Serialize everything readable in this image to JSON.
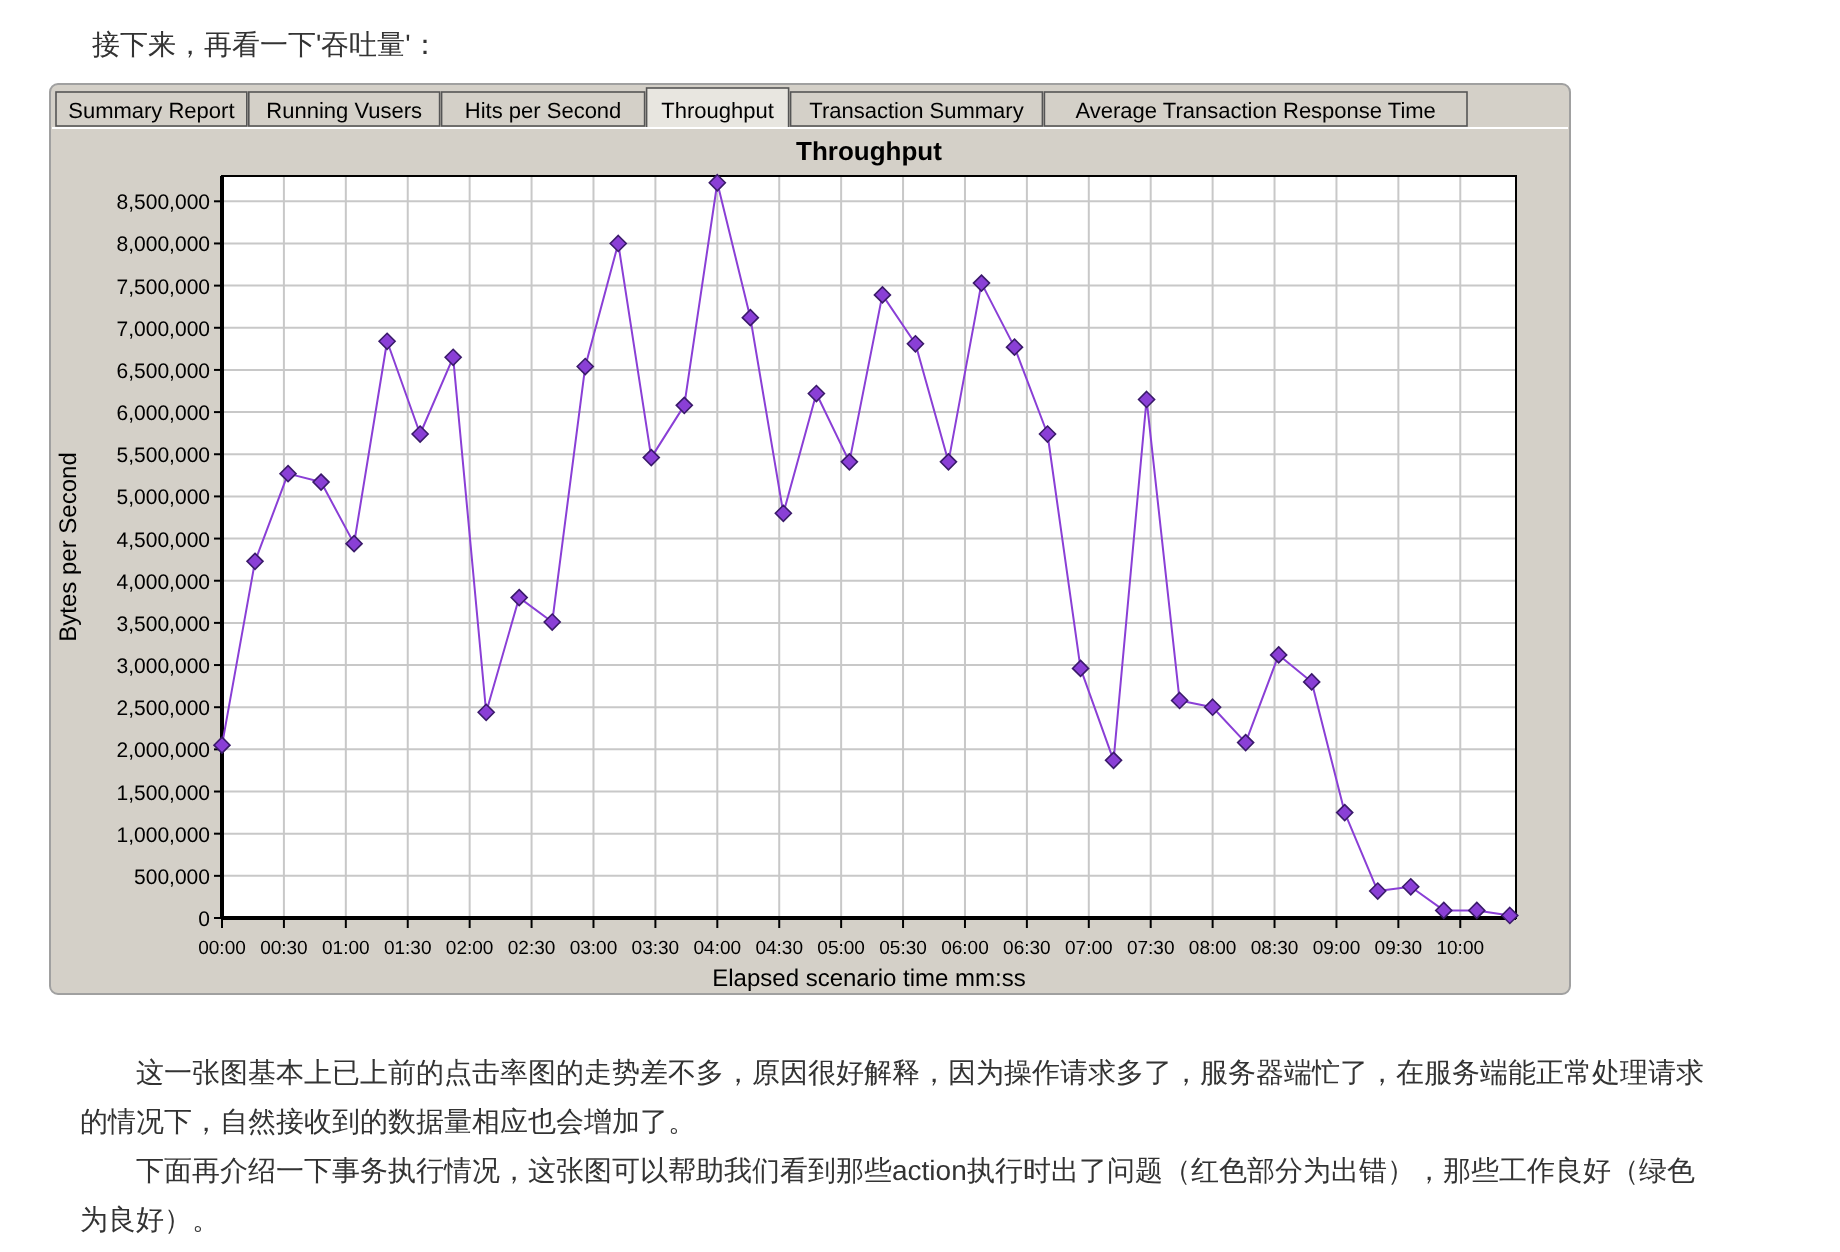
{
  "chart_data": {
    "type": "line",
    "title": "Throughput",
    "xlabel": "Elapsed scenario time mm:ss",
    "ylabel": "Bytes per Second",
    "annotations": [
      "接下来，再看一下'吞吐量'：",
      "Summary Report",
      "Running Vusers",
      "Hits per Second",
      "Throughput",
      "Transaction Summary",
      "Average Transaction Response Time",
      "这一张图基本上已上前的点击率图的走势差不多，原因很好解释，因为操作请求多了，服务器端忙了，在服务端能正常处理请求的情况下，自然接收到的数据量相应也会增加了。",
      "下面再介绍一下事务执行情况，这张图可以帮助我们看到那些action执行时出了问题（红色部分为出错），那些工作良好（绿色为良好）。"
    ],
    "x": [
      0,
      16,
      32,
      48,
      64,
      80,
      96,
      112,
      128,
      144,
      160,
      176,
      192,
      208,
      224,
      240,
      256,
      272,
      288,
      304,
      320,
      336,
      352,
      368,
      384,
      400,
      416,
      432,
      448,
      464,
      480,
      496,
      512,
      528,
      544,
      560,
      576,
      592,
      608,
      624
    ],
    "series": [
      {
        "color": "#8a3fd6",
        "values": [
          2050000,
          4230000,
          5270000,
          5170000,
          4440000,
          6840000,
          5740000,
          6650000,
          2440000,
          3800000,
          3510000,
          6540000,
          8000000,
          5460000,
          6080000,
          8720000,
          7120000,
          4800000,
          6220000,
          5410000,
          7390000,
          6810000,
          5410000,
          7530000,
          6770000,
          5740000,
          2960000,
          1870000,
          6150000,
          2580000,
          2500000,
          2080000,
          3120000,
          2800000,
          1250000,
          320000,
          370000,
          90000,
          90000,
          30000
        ]
      }
    ],
    "xlim": [
      0,
      627
    ],
    "xticks": [
      {
        "value": 0,
        "label": "00:00"
      },
      {
        "value": 30,
        "label": "00:30"
      },
      {
        "value": 60,
        "label": "01:00"
      },
      {
        "value": 90,
        "label": "01:30"
      },
      {
        "value": 120,
        "label": "02:00"
      },
      {
        "value": 150,
        "label": "02:30"
      },
      {
        "value": 180,
        "label": "03:00"
      },
      {
        "value": 210,
        "label": "03:30"
      },
      {
        "value": 240,
        "label": "04:00"
      },
      {
        "value": 270,
        "label": "04:30"
      },
      {
        "value": 300,
        "label": "05:00"
      },
      {
        "value": 330,
        "label": "05:30"
      },
      {
        "value": 360,
        "label": "06:00"
      },
      {
        "value": 390,
        "label": "06:30"
      },
      {
        "value": 420,
        "label": "07:00"
      },
      {
        "value": 450,
        "label": "07:30"
      },
      {
        "value": 480,
        "label": "08:00"
      },
      {
        "value": 510,
        "label": "08:30"
      },
      {
        "value": 540,
        "label": "09:00"
      },
      {
        "value": 570,
        "label": "09:30"
      },
      {
        "value": 600,
        "label": "10:00"
      }
    ],
    "ylim": [
      0,
      8800000
    ],
    "yticks": [
      {
        "value": 0,
        "label": "0"
      },
      {
        "value": 500000,
        "label": "500,000"
      },
      {
        "value": 1000000,
        "label": "1,000,000"
      },
      {
        "value": 1500000,
        "label": "1,500,000"
      },
      {
        "value": 2000000,
        "label": "2,000,000"
      },
      {
        "value": 2500000,
        "label": "2,500,000"
      },
      {
        "value": 3000000,
        "label": "3,000,000"
      },
      {
        "value": 3500000,
        "label": "3,500,000"
      },
      {
        "value": 4000000,
        "label": "4,000,000"
      },
      {
        "value": 4500000,
        "label": "4,500,000"
      },
      {
        "value": 5000000,
        "label": "5,000,000"
      },
      {
        "value": 5500000,
        "label": "5,500,000"
      },
      {
        "value": 6000000,
        "label": "6,000,000"
      },
      {
        "value": 6500000,
        "label": "6,500,000"
      },
      {
        "value": 7000000,
        "label": "7,000,000"
      },
      {
        "value": 7500000,
        "label": "7,500,000"
      },
      {
        "value": 8000000,
        "label": "8,000,000"
      },
      {
        "value": 8500000,
        "label": "8,500,000"
      }
    ],
    "grid": true,
    "marker": "diamond",
    "line_style": "solid"
  }
}
